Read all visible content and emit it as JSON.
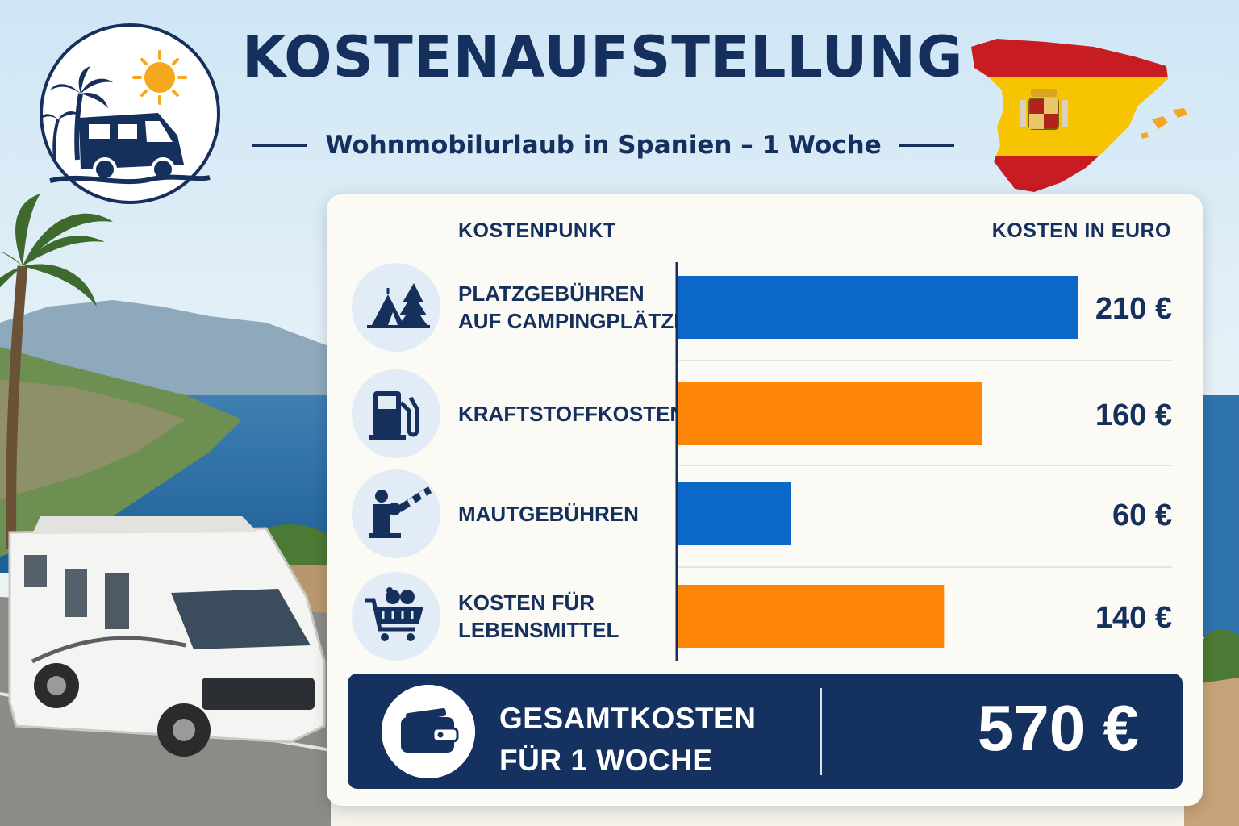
{
  "header": {
    "title": "KOSTENAUFSTELLUNG",
    "subtitle": "Wohnmobilurlaub in Spanien – 1 Woche"
  },
  "icons": {
    "logo": "camper-palm-sun-logo-icon",
    "map": "spain-flag-map-icon",
    "rows": [
      "tent-tree-icon",
      "fuel-pump-icon",
      "toll-barrier-icon",
      "shopping-cart-icon"
    ],
    "total": "wallet-icon"
  },
  "colors": {
    "navy": "#16305e",
    "blue": "#0b68c8",
    "orange": "#fd8608",
    "icon_bg": "#e2ecf6"
  },
  "chart_data": {
    "type": "bar",
    "orientation": "horizontal",
    "column_headers": {
      "category": "KOSTENPUNKT",
      "value": "KOSTEN IN EURO"
    },
    "categories": [
      [
        "PLATZGEBÜHREN",
        "AUF CAMPINGPLÄTZEN"
      ],
      [
        "KRAFTSTOFFKOSTEN"
      ],
      [
        "MAUTGEBÜHREN"
      ],
      [
        "KOSTEN FÜR",
        "LEBENSMITTEL"
      ]
    ],
    "values": [
      210,
      160,
      60,
      140
    ],
    "value_labels": [
      "210 €",
      "160 €",
      "60 €",
      "140 €"
    ],
    "bar_colors": [
      "#0b68c8",
      "#fd8608",
      "#0b68c8",
      "#fd8608"
    ],
    "unit": "€",
    "xlim": [
      0,
      210
    ],
    "grid": false,
    "legend": "none"
  },
  "total": {
    "label_line1": "GESAMTKOSTEN",
    "label_line2": "FÜR 1 WOCHE",
    "value": "570 €"
  }
}
